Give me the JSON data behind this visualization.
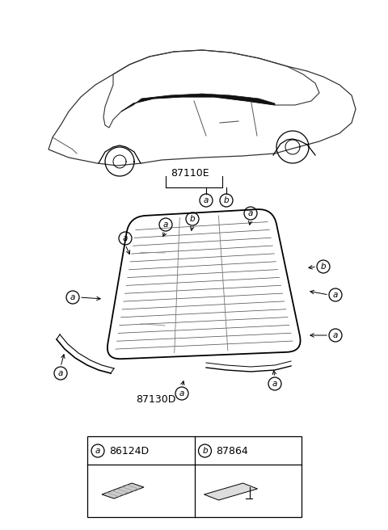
{
  "bg_color": "#ffffff",
  "part_label_87110E": "87110E",
  "part_label_87130D": "87130D",
  "legend_a_part": "86124D",
  "legend_b_part": "87864"
}
